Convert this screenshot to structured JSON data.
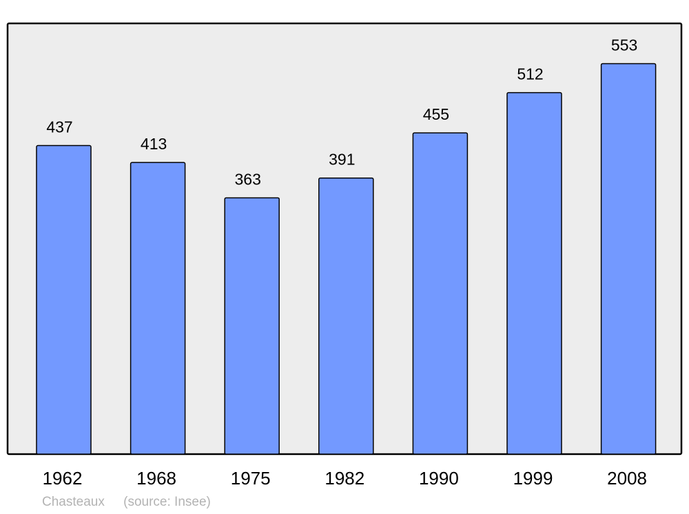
{
  "chart_data": {
    "type": "bar",
    "categories": [
      "1962",
      "1968",
      "1975",
      "1982",
      "1990",
      "1999",
      "2008"
    ],
    "values": [
      437,
      413,
      363,
      391,
      455,
      512,
      553
    ],
    "ylim": [
      0,
      610
    ],
    "grid": false,
    "colors": {
      "bar": "#7399ff",
      "background": "#ededed",
      "border": "#000000"
    }
  },
  "footer": {
    "place": "Chasteaux",
    "source": "(source: Insee)"
  }
}
